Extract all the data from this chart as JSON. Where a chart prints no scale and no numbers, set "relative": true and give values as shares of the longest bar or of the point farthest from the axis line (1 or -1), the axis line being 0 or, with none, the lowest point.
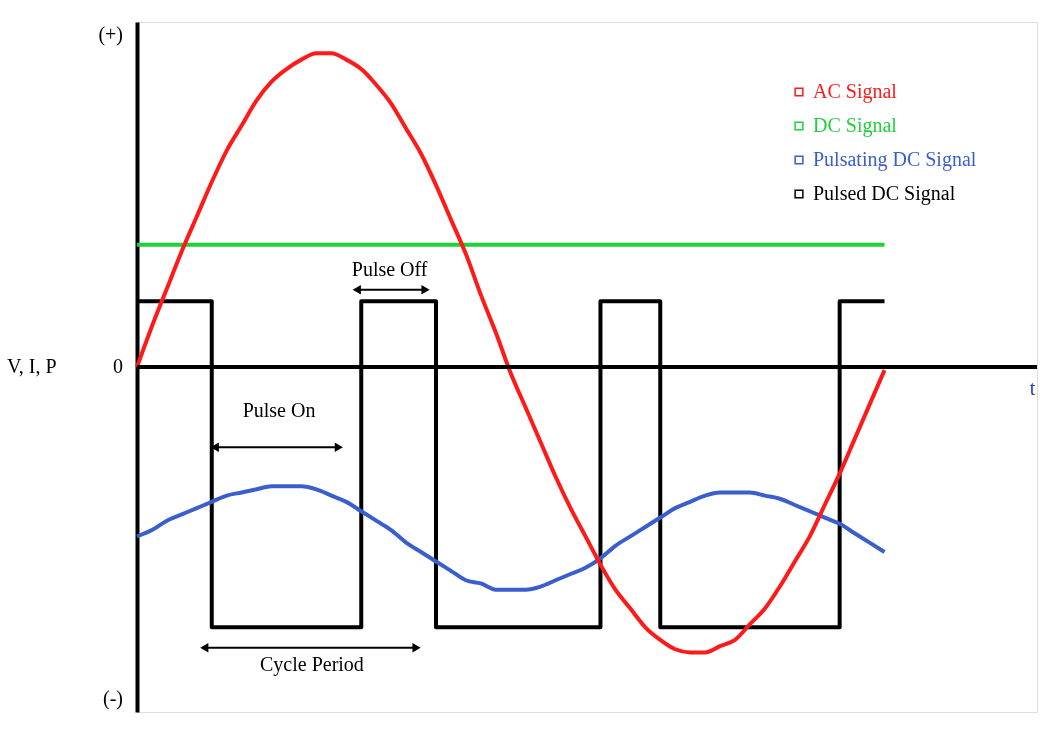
{
  "chart_data": {
    "type": "line",
    "relative": true,
    "ylabel": "V, I, P",
    "legend": "top right",
    "grid": false,
    "marker": "none",
    "line_style": "solid",
    "categories": [
      null,
      null,
      null,
      null,
      null,
      null,
      null,
      null,
      null,
      null,
      null,
      null,
      null,
      null,
      null,
      null,
      null,
      null,
      null,
      null,
      null,
      null,
      null,
      null,
      null,
      null,
      null,
      null,
      null,
      null,
      null,
      null,
      null,
      null,
      null,
      null,
      null,
      null,
      null,
      null,
      null,
      null,
      null,
      null,
      null,
      null,
      null,
      null,
      null,
      null,
      null
    ],
    "series": [
      {
        "name": "AC Signal",
        "color": "#ff1a1a",
        "values": [
          0,
          0.13,
          0.25,
          0.37,
          0.48,
          0.59,
          0.69,
          0.77,
          0.85,
          0.91,
          0.95,
          0.98,
          1,
          1,
          0.98,
          0.95,
          0.9,
          0.84,
          0.76,
          0.68,
          0.58,
          0.47,
          0.36,
          0.23,
          0.11,
          -0.02,
          -0.13,
          -0.24,
          -0.35,
          -0.45,
          -0.54,
          -0.63,
          -0.71,
          -0.77,
          -0.83,
          -0.87,
          -0.9,
          -0.91,
          -0.91,
          -0.89,
          -0.87,
          -0.82,
          -0.77,
          -0.7,
          -0.62,
          -0.54,
          -0.44,
          -0.34,
          -0.23,
          -0.12,
          -0.01
        ]
      },
      {
        "name": "DC Signal",
        "color": "#1fd13a",
        "values": [
          0.39,
          0.39,
          0.39,
          0.39,
          0.39,
          0.39,
          0.39,
          0.39,
          0.39,
          0.39,
          0.39,
          0.39,
          0.39,
          0.39,
          0.39,
          0.39,
          0.39,
          0.39,
          0.39,
          0.39,
          0.39,
          0.39,
          0.39,
          0.39,
          0.39,
          0.39,
          0.39,
          0.39,
          0.39,
          0.39,
          0.39,
          0.39,
          0.39,
          0.39,
          0.39,
          0.39,
          0.39,
          0.39,
          0.39,
          0.39,
          0.39,
          0.39,
          0.39,
          0.39,
          0.39,
          0.39,
          0.39,
          0.39,
          0.39,
          0.39,
          0.39
        ]
      },
      {
        "name": "Pulsating DC Signal",
        "color": "#3a5fcd",
        "values": [
          -0.54,
          -0.52,
          -0.49,
          -0.47,
          -0.45,
          -0.43,
          -0.41,
          -0.4,
          -0.39,
          -0.38,
          -0.38,
          -0.38,
          -0.39,
          -0.41,
          -0.43,
          -0.46,
          -0.49,
          -0.52,
          -0.56,
          -0.59,
          -0.62,
          -0.65,
          -0.68,
          -0.69,
          -0.71,
          -0.71,
          -0.71,
          -0.7,
          -0.68,
          -0.66,
          -0.64,
          -0.61,
          -0.57,
          -0.54,
          -0.51,
          -0.48,
          -0.45,
          -0.43,
          -0.41,
          -0.4,
          -0.4,
          -0.4,
          -0.41,
          -0.42,
          -0.44,
          -0.46,
          -0.48,
          -0.5,
          -0.53,
          -0.56,
          -0.59
        ]
      },
      {
        "name": "Pulsed DC Signal",
        "type": "step",
        "color": "#000000",
        "values": [
          0.21,
          0.21,
          0.21,
          0.21,
          0.21,
          -0.83,
          -0.83,
          -0.83,
          -0.83,
          -0.83,
          -0.83,
          -0.83,
          -0.83,
          -0.83,
          -0.83,
          0.21,
          0.21,
          0.21,
          0.21,
          0.21,
          -0.83,
          -0.83,
          -0.83,
          -0.83,
          -0.83,
          -0.83,
          -0.83,
          -0.83,
          -0.83,
          -0.83,
          -0.83,
          0.21,
          0.21,
          0.21,
          0.21,
          -0.83,
          -0.83,
          -0.83,
          -0.83,
          -0.83,
          -0.83,
          -0.83,
          -0.83,
          -0.83,
          -0.83,
          -0.83,
          -0.83,
          0.21,
          0.21,
          0.21,
          0.21
        ]
      }
    ],
    "annotations": [
      "(+)",
      "0",
      "(-)",
      "Pulse Off",
      "Pulse On",
      "Cycle Period",
      "t"
    ]
  }
}
